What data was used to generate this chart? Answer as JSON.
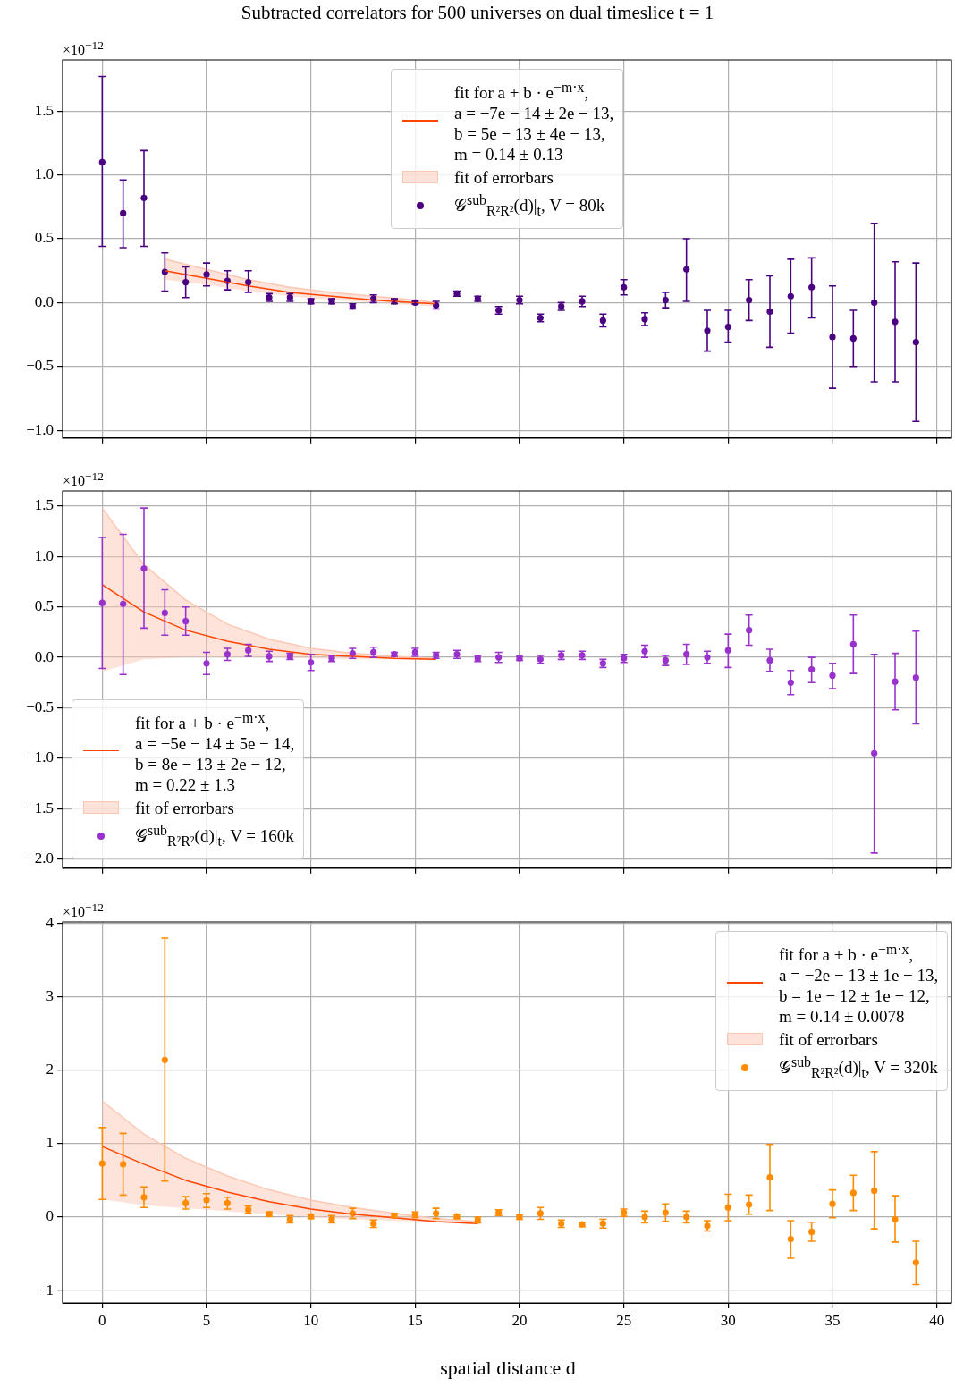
{
  "chart_data": [
    {
      "type": "scatter",
      "title": "Subtracted correlators for 500 universes on dual timeslice t = 1",
      "annotations": [
        "×10$^{−12}$"
      ],
      "x": [
        0,
        1,
        2,
        3,
        4,
        5,
        6,
        7,
        8,
        9,
        10,
        11,
        12,
        13,
        14,
        15,
        16,
        17,
        18,
        19,
        20,
        21,
        22,
        23,
        24,
        25,
        26,
        27,
        28,
        29,
        30,
        31,
        32,
        33,
        34,
        35,
        36,
        37,
        38,
        39
      ],
      "xlim": [
        -1.9,
        40.7
      ],
      "xticks": [
        0,
        5,
        10,
        15,
        20,
        25,
        30,
        35,
        40
      ],
      "ylim": [
        -1.06,
        1.9
      ],
      "yticks": [
        {
          "value": -1,
          "label": "−1.0"
        },
        {
          "value": -0.5,
          "label": "−0.5"
        },
        {
          "value": 0,
          "label": "0.0"
        },
        {
          "value": 0.5,
          "label": "0.5"
        },
        {
          "value": 1,
          "label": "1.0"
        },
        {
          "value": 1.5,
          "label": "1.5"
        }
      ],
      "tick_labels": "y",
      "grid": true,
      "legend": "top",
      "series": [
        {
          "type": "line",
          "name": "fit for a + b · e$^{−m·x}$,\na = −7e − 14 ± 2e − 13,\nb = 5e − 13 ± 4e − 13,\nm = 0.14 ± 0.13",
          "color": "#ff4500",
          "x": [
            3,
            5,
            7,
            9,
            11,
            13,
            15,
            16
          ],
          "values": [
            0.25,
            0.19,
            0.13,
            0.08,
            0.05,
            0.02,
            0.0,
            -0.01
          ]
        },
        {
          "type": "line",
          "name": "fit of errorbars",
          "color": "#fcc8b4",
          "x": [
            3,
            5,
            7,
            9,
            11,
            13,
            15,
            16
          ],
          "values": [
            0.34,
            0.26,
            0.18,
            0.12,
            0.08,
            0.05,
            0.02,
            0.0
          ],
          "lower": [
            0.18,
            0.14,
            0.09,
            0.05,
            0.02,
            0.0,
            -0.02,
            -0.03
          ],
          "upper": [
            0.34,
            0.26,
            0.18,
            0.12,
            0.08,
            0.05,
            0.02,
            0.0
          ]
        },
        {
          "type": "scatter",
          "marker": "circle",
          "name": "𝒢$^{sub}$$_{R²R²}$(d)|$_{t}$, V = 80k",
          "color": "#4b0082",
          "values": [
            1.1,
            0.7,
            0.82,
            0.24,
            0.16,
            0.22,
            0.17,
            0.16,
            0.04,
            0.04,
            0.01,
            0.01,
            -0.03,
            0.03,
            0.01,
            0.0,
            -0.02,
            0.07,
            0.03,
            -0.06,
            0.02,
            -0.12,
            -0.03,
            0.01,
            -0.14,
            0.12,
            -0.13,
            0.02,
            0.26,
            -0.22,
            -0.19,
            0.02,
            -0.07,
            0.05,
            0.12,
            -0.27,
            -0.28,
            0.0,
            -0.15,
            -0.31
          ],
          "errors": [
            [
              0.44,
              1.77
            ],
            [
              0.43,
              0.96
            ],
            [
              0.44,
              1.19
            ],
            [
              0.09,
              0.39
            ],
            [
              0.04,
              0.28
            ],
            [
              0.13,
              0.31
            ],
            [
              0.1,
              0.25
            ],
            [
              0.08,
              0.25
            ],
            0.03,
            0.03,
            0.02,
            0.02,
            0.02,
            0.03,
            0.02,
            0.01,
            0.03,
            0.02,
            0.02,
            0.03,
            0.03,
            0.03,
            0.03,
            0.04,
            0.05,
            0.06,
            0.05,
            0.06,
            [
              0.01,
              0.5
            ],
            [
              -0.38,
              -0.06
            ],
            [
              -0.31,
              -0.06
            ],
            [
              -0.14,
              0.18
            ],
            [
              -0.35,
              0.21
            ],
            [
              -0.24,
              0.34
            ],
            [
              -0.12,
              0.35
            ],
            [
              -0.67,
              0.13
            ],
            [
              -0.5,
              -0.06
            ],
            [
              -0.62,
              0.62
            ],
            [
              -0.62,
              0.32
            ],
            [
              -0.93,
              0.31
            ]
          ]
        }
      ]
    },
    {
      "type": "scatter",
      "annotations": [
        "×10$^{−12}$"
      ],
      "x": [
        0,
        1,
        2,
        3,
        4,
        5,
        6,
        7,
        8,
        9,
        10,
        11,
        12,
        13,
        14,
        15,
        16,
        17,
        18,
        19,
        20,
        21,
        22,
        23,
        24,
        25,
        26,
        27,
        28,
        29,
        30,
        31,
        32,
        33,
        34,
        35,
        36,
        37,
        38,
        39
      ],
      "xlim": [
        -1.9,
        40.7
      ],
      "xticks": [
        0,
        5,
        10,
        15,
        20,
        25,
        30,
        35,
        40
      ],
      "ylim": [
        -2.09,
        1.65
      ],
      "yticks": [
        {
          "value": -2,
          "label": "−2.0"
        },
        {
          "value": -1.5,
          "label": "−1.5"
        },
        {
          "value": -1,
          "label": "−1.0"
        },
        {
          "value": -0.5,
          "label": "−0.5"
        },
        {
          "value": 0,
          "label": "0.0"
        },
        {
          "value": 0.5,
          "label": "0.5"
        },
        {
          "value": 1,
          "label": "1.0"
        },
        {
          "value": 1.5,
          "label": "1.5"
        }
      ],
      "tick_labels": "y",
      "grid": true,
      "legend": "bottom left",
      "series": [
        {
          "type": "line",
          "name": "fit for a + b · e$^{−m·x}$,\na = −5e − 14 ± 5e − 14,\nb = 8e − 13 ± 2e − 12,\nm = 0.22 ± 1.3",
          "color": "#ff4500",
          "x": [
            0,
            2,
            4,
            6,
            8,
            10,
            12,
            14,
            16
          ],
          "values": [
            0.72,
            0.45,
            0.27,
            0.16,
            0.08,
            0.03,
            0.01,
            -0.01,
            -0.02
          ]
        },
        {
          "type": "line",
          "name": "fit of errorbars",
          "color": "#fcc8b4",
          "x": [
            0,
            2,
            4,
            6,
            8,
            10,
            12,
            14,
            16
          ],
          "values": [
            1.48,
            0.92,
            0.57,
            0.33,
            0.18,
            0.09,
            0.04,
            0.01,
            -0.01
          ],
          "lower": [
            -0.14,
            -0.02,
            0.0,
            0.0,
            0.0,
            -0.01,
            -0.02,
            -0.02,
            -0.03
          ],
          "upper": [
            1.48,
            0.92,
            0.57,
            0.33,
            0.18,
            0.09,
            0.04,
            0.01,
            -0.01
          ]
        },
        {
          "type": "scatter",
          "marker": "circle",
          "name": "𝒢$^{sub}$$_{R²R²}$(d)|$_{t}$, V = 160k",
          "color": "#9932cc",
          "values": [
            0.54,
            0.53,
            0.88,
            0.44,
            0.36,
            -0.06,
            0.03,
            0.07,
            0.01,
            0.01,
            -0.05,
            -0.01,
            0.04,
            0.05,
            0.03,
            0.05,
            0.02,
            0.03,
            -0.01,
            0.0,
            -0.01,
            -0.02,
            0.02,
            0.02,
            -0.06,
            -0.01,
            0.06,
            -0.03,
            0.03,
            0.0,
            0.07,
            0.27,
            -0.03,
            -0.25,
            -0.12,
            -0.18,
            0.13,
            -0.95,
            -0.24,
            -0.2
          ],
          "errors": [
            [
              -0.11,
              1.19
            ],
            [
              -0.17,
              1.22
            ],
            [
              0.29,
              1.48
            ],
            [
              0.22,
              0.67
            ],
            [
              0.22,
              0.5
            ],
            [
              -0.17,
              0.05
            ],
            0.06,
            0.06,
            0.05,
            0.03,
            0.08,
            0.03,
            0.05,
            0.05,
            0.02,
            0.04,
            0.03,
            0.04,
            0.03,
            0.05,
            0.02,
            0.04,
            0.04,
            0.04,
            0.04,
            0.04,
            0.06,
            0.05,
            0.1,
            0.06,
            [
              -0.1,
              0.23
            ],
            [
              0.12,
              0.42
            ],
            [
              -0.14,
              0.08
            ],
            [
              -0.37,
              -0.13
            ],
            [
              -0.25,
              0.0
            ],
            [
              -0.31,
              -0.06
            ],
            [
              -0.16,
              0.42
            ],
            [
              -1.94,
              0.03
            ],
            [
              -0.52,
              0.04
            ],
            [
              -0.66,
              0.26
            ]
          ]
        }
      ]
    },
    {
      "type": "scatter",
      "annotations": [
        "×10$^{−12}$"
      ],
      "xlabel": "spatial distance d",
      "x": [
        0,
        1,
        2,
        3,
        4,
        5,
        6,
        7,
        8,
        9,
        10,
        11,
        12,
        13,
        14,
        15,
        16,
        17,
        18,
        19,
        20,
        21,
        22,
        23,
        24,
        25,
        26,
        27,
        28,
        29,
        30,
        31,
        32,
        33,
        34,
        35,
        36,
        37,
        38,
        39
      ],
      "xlim": [
        -1.9,
        40.7
      ],
      "xticks": [
        0,
        5,
        10,
        15,
        20,
        25,
        30,
        35,
        40
      ],
      "ylim": [
        -1.17,
        4.02
      ],
      "yticks": [
        {
          "value": -1,
          "label": "−1"
        },
        0,
        1,
        2,
        3,
        4
      ],
      "grid": true,
      "legend": "top right",
      "series": [
        {
          "type": "line",
          "name": "fit for a + b · e$^{−m·x}$,\na = −2e − 13 ± 1e − 13,\nb = 1e − 12 ± 1e − 12,\nm = 0.14 ± 0.0078",
          "color": "#ff4500",
          "x": [
            0,
            2,
            4,
            6,
            8,
            10,
            12,
            14,
            16,
            18
          ],
          "values": [
            0.96,
            0.72,
            0.5,
            0.34,
            0.21,
            0.11,
            0.04,
            -0.01,
            -0.06,
            -0.09
          ]
        },
        {
          "type": "line",
          "name": "fit of errorbars",
          "color": "#fcc8b4",
          "x": [
            0,
            2,
            4,
            6,
            8,
            10,
            12,
            14,
            16,
            18
          ],
          "values": [
            1.58,
            1.13,
            0.8,
            0.56,
            0.37,
            0.23,
            0.13,
            0.05,
            -0.02,
            -0.06
          ],
          "lower": [
            0.24,
            0.16,
            0.12,
            0.08,
            0.04,
            0.0,
            -0.03,
            -0.05,
            -0.07,
            -0.1
          ],
          "upper": [
            1.58,
            1.13,
            0.8,
            0.56,
            0.37,
            0.23,
            0.13,
            0.05,
            -0.02,
            -0.06
          ]
        },
        {
          "type": "scatter",
          "marker": "circle",
          "name": "𝒢$^{sub}$$_{R²R²}$(d)|$_{t}$, V = 320k",
          "color": "#ff8c00",
          "values": [
            0.73,
            0.72,
            0.27,
            2.14,
            0.19,
            0.23,
            0.19,
            0.1,
            0.04,
            -0.03,
            0.01,
            -0.03,
            0.05,
            -0.09,
            0.02,
            0.03,
            0.05,
            0.01,
            -0.04,
            0.06,
            0.0,
            0.05,
            -0.09,
            -0.1,
            -0.09,
            0.06,
            0.0,
            0.06,
            0.0,
            -0.12,
            0.13,
            0.17,
            0.54,
            -0.3,
            -0.2,
            0.18,
            0.33,
            0.36,
            -0.03,
            -0.62
          ],
          "errors": [
            [
              0.24,
              1.22
            ],
            [
              0.3,
              1.14
            ],
            [
              0.13,
              0.41
            ],
            [
              0.49,
              3.8
            ],
            [
              0.11,
              0.28
            ],
            [
              0.13,
              0.32
            ],
            [
              0.11,
              0.27
            ],
            0.05,
            0.03,
            0.05,
            0.03,
            0.05,
            0.07,
            0.05,
            0.03,
            0.04,
            0.07,
            0.03,
            0.04,
            0.04,
            0.03,
            0.08,
            0.05,
            0.03,
            0.06,
            0.05,
            0.08,
            0.12,
            0.08,
            0.07,
            [
              -0.05,
              0.31
            ],
            [
              0.04,
              0.3
            ],
            [
              0.09,
              0.99
            ],
            [
              -0.56,
              -0.05
            ],
            [
              -0.33,
              -0.07
            ],
            [
              -0.01,
              0.37
            ],
            [
              0.09,
              0.57
            ],
            [
              -0.16,
              0.89
            ],
            [
              -0.34,
              0.29
            ],
            [
              -0.92,
              -0.33
            ]
          ]
        }
      ]
    }
  ]
}
